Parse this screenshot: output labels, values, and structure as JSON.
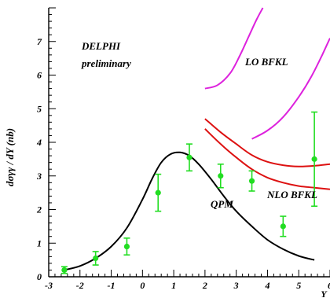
{
  "chart_data": {
    "type": "scatter",
    "title": "",
    "xlabel": "Y",
    "ylabel": "dσγγ / dY (nb)",
    "xlim": [
      -3,
      6
    ],
    "ylim": [
      0,
      8
    ],
    "x_ticks": [
      -3,
      -2,
      -1,
      0,
      1,
      2,
      3,
      4,
      5,
      6
    ],
    "y_ticks": [
      0,
      1,
      2,
      3,
      4,
      5,
      6,
      7
    ],
    "x_tick_labels": [
      "-3",
      "-2",
      "-1",
      "0",
      "1",
      "2",
      "3",
      "4",
      "5",
      "6"
    ],
    "y_tick_labels": [
      "0",
      "1",
      "2",
      "3",
      "4",
      "5",
      "6",
      "7"
    ],
    "grid": false,
    "legend": null,
    "annotations": {
      "experiment": "DELPHI",
      "status": "preliminary",
      "lo_bfkl": "LO BFKL",
      "nlo_bfkl": "NLO BFKL",
      "qpm": "QPM"
    },
    "data_points": {
      "color": "#22dd22",
      "points": [
        {
          "x": -2.5,
          "y": 0.2,
          "err_low": 0.1,
          "err_high": 0.1
        },
        {
          "x": -1.5,
          "y": 0.55,
          "err_low": 0.2,
          "err_high": 0.2
        },
        {
          "x": -0.5,
          "y": 0.9,
          "err_low": 0.25,
          "err_high": 0.25
        },
        {
          "x": 0.5,
          "y": 2.5,
          "err_low": 0.55,
          "err_high": 0.55
        },
        {
          "x": 1.5,
          "y": 3.55,
          "err_low": 0.4,
          "err_high": 0.4
        },
        {
          "x": 2.5,
          "y": 3.0,
          "err_low": 0.35,
          "err_high": 0.35
        },
        {
          "x": 3.5,
          "y": 2.85,
          "err_low": 0.3,
          "err_high": 0.3
        },
        {
          "x": 4.5,
          "y": 1.5,
          "err_low": 0.3,
          "err_high": 0.3
        },
        {
          "x": 5.5,
          "y": 3.5,
          "err_low": 1.4,
          "err_high": 1.4
        }
      ]
    },
    "curves": [
      {
        "id": "qpm",
        "color": "#000000",
        "x": [
          -2.5,
          -2.0,
          -1.5,
          -1.0,
          -0.5,
          0.0,
          0.3,
          0.6,
          0.9,
          1.2,
          1.5,
          1.8,
          2.2,
          2.6,
          3.0,
          3.5,
          4.0,
          4.5,
          5.0,
          5.5
        ],
        "y": [
          0.2,
          0.32,
          0.55,
          0.9,
          1.45,
          2.3,
          2.9,
          3.4,
          3.65,
          3.7,
          3.6,
          3.35,
          2.9,
          2.4,
          1.95,
          1.5,
          1.1,
          0.82,
          0.62,
          0.5
        ]
      },
      {
        "id": "nlo_bfkl_upper",
        "color": "#dd1111",
        "x": [
          2.0,
          2.5,
          3.0,
          3.5,
          4.0,
          4.5,
          5.0,
          5.5,
          6.0
        ],
        "y": [
          4.7,
          4.3,
          3.95,
          3.62,
          3.42,
          3.32,
          3.28,
          3.3,
          3.35
        ]
      },
      {
        "id": "nlo_bfkl_lower",
        "color": "#dd1111",
        "x": [
          2.0,
          2.5,
          3.0,
          3.5,
          4.0,
          4.5,
          5.0,
          5.5,
          6.0
        ],
        "y": [
          4.4,
          3.95,
          3.55,
          3.2,
          2.95,
          2.8,
          2.7,
          2.65,
          2.6
        ]
      },
      {
        "id": "lo_bfkl_lower",
        "color": "#dd22dd",
        "x": [
          2.0,
          2.4,
          2.8,
          3.1,
          3.4,
          3.65,
          3.85
        ],
        "y": [
          5.6,
          5.7,
          6.05,
          6.55,
          7.15,
          7.65,
          8.0
        ]
      },
      {
        "id": "lo_bfkl_upper",
        "color": "#dd22dd",
        "x": [
          3.5,
          4.0,
          4.5,
          5.0,
          5.4,
          5.75,
          6.0
        ],
        "y": [
          4.1,
          4.35,
          4.75,
          5.35,
          5.95,
          6.6,
          7.1
        ]
      }
    ]
  }
}
